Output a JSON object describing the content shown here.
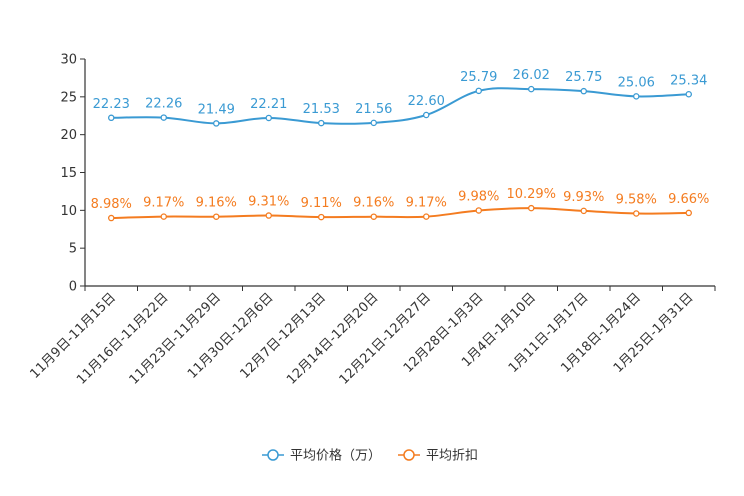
{
  "chart_data": {
    "type": "line",
    "categories": [
      "11月9日-11月15日",
      "11月16日-11月22日",
      "11月23日-11月29日",
      "11月30日-12月6日",
      "12月7日-12月13日",
      "12月14日-12月20日",
      "12月21日-12月27日",
      "12月28日-1月3日",
      "1月4日-1月10日",
      "1月11日-1月17日",
      "1月18日-1月24日",
      "1月25日-1月31日"
    ],
    "ylim": [
      0,
      30
    ],
    "yticks": [
      0,
      5,
      10,
      15,
      20,
      25,
      30
    ],
    "series": [
      {
        "name": "平均价格（万）",
        "color": "#3a9ad3",
        "values": [
          22.23,
          22.26,
          21.49,
          22.21,
          21.53,
          21.56,
          22.6,
          25.79,
          26.02,
          25.75,
          25.06,
          25.34
        ],
        "labels": [
          "22.23",
          "22.26",
          "21.49",
          "22.21",
          "21.53",
          "21.56",
          "22.60",
          "25.79",
          "26.02",
          "25.75",
          "25.06",
          "25.34"
        ]
      },
      {
        "name": "平均折扣",
        "color": "#f47c20",
        "values": [
          8.98,
          9.17,
          9.16,
          9.31,
          9.11,
          9.16,
          9.17,
          9.98,
          10.29,
          9.93,
          9.58,
          9.66
        ],
        "labels": [
          "8.98%",
          "9.17%",
          "9.16%",
          "9.31%",
          "9.11%",
          "9.16%",
          "9.17%",
          "9.98%",
          "10.29%",
          "9.93%",
          "9.58%",
          "9.66%"
        ]
      }
    ],
    "legend_position": "bottom-center"
  }
}
